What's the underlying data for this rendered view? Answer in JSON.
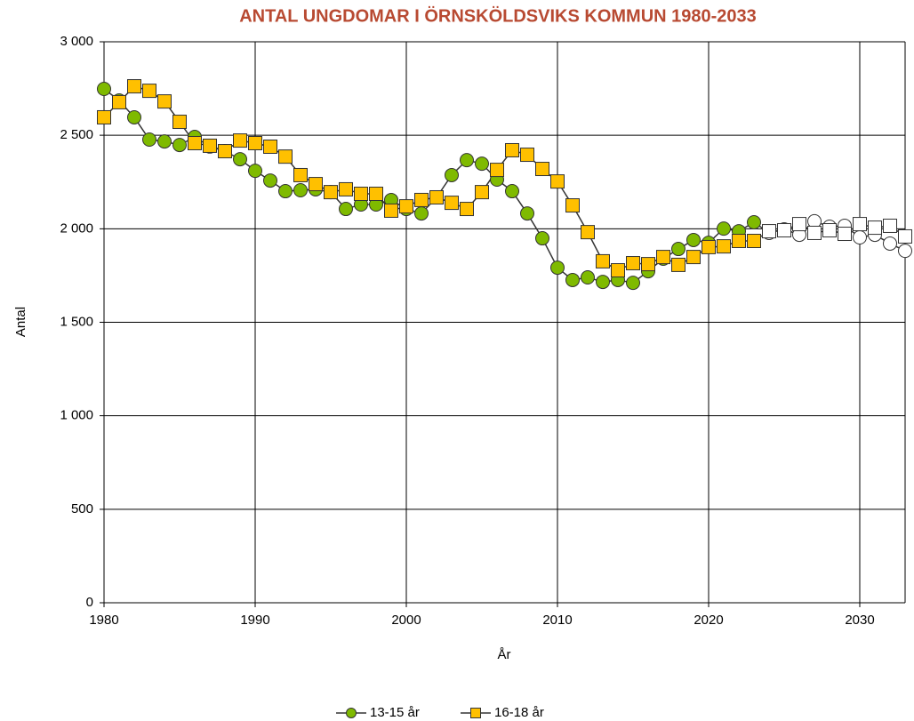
{
  "chart_data": {
    "type": "line",
    "title": "ANTAL UNGDOMAR I ÖRNSKÖLDSVIKS KOMMUN 1980-2033",
    "title_color": "#b84a32",
    "x_label": "År",
    "y_label": "Antal",
    "x": [
      1980,
      1981,
      1982,
      1983,
      1984,
      1985,
      1986,
      1987,
      1988,
      1989,
      1990,
      1991,
      1992,
      1993,
      1994,
      1995,
      1996,
      1997,
      1998,
      1999,
      2000,
      2001,
      2002,
      2003,
      2004,
      2005,
      2006,
      2007,
      2008,
      2009,
      2010,
      2011,
      2012,
      2013,
      2014,
      2015,
      2016,
      2017,
      2018,
      2019,
      2020,
      2021,
      2022,
      2023,
      2024,
      2025,
      2026,
      2027,
      2028,
      2029,
      2030,
      2031,
      2032,
      2033
    ],
    "forecast_from": 2024,
    "forecast_marker_color": "#ffffff",
    "series": [
      {
        "name": "13-15 år",
        "color": "#7fba00",
        "marker": "circle",
        "values": [
          2748,
          2686,
          2596,
          2477,
          2467,
          2448,
          2491,
          2440,
          2415,
          2372,
          2310,
          2258,
          2201,
          2206,
          2211,
          2196,
          2106,
          2130,
          2130,
          2154,
          2106,
          2082,
          2168,
          2287,
          2367,
          2348,
          2263,
          2201,
          2082,
          1949,
          1792,
          1726,
          1740,
          1716,
          1726,
          1711,
          1773,
          1840,
          1892,
          1940,
          1925,
          2001,
          1987,
          2035,
          1978,
          1997,
          1968,
          2040,
          2011,
          2016,
          1954,
          1968,
          1921,
          1882
        ]
      },
      {
        "name": "16-18 år",
        "color": "#ffc000",
        "marker": "square",
        "values": [
          2596,
          2677,
          2762,
          2738,
          2681,
          2572,
          2458,
          2444,
          2415,
          2472,
          2458,
          2439,
          2386,
          2287,
          2239,
          2196,
          2211,
          2187,
          2187,
          2097,
          2120,
          2154,
          2168,
          2139,
          2106,
          2196,
          2315,
          2420,
          2396,
          2320,
          2253,
          2125,
          1982,
          1826,
          1778,
          1816,
          1811,
          1849,
          1807,
          1849,
          1902,
          1906,
          1935,
          1935,
          1987,
          1992,
          2025,
          1978,
          1992,
          1973,
          2025,
          2006,
          2016,
          1959
        ]
      }
    ],
    "xlim": [
      1980,
      2033
    ],
    "xticks": [
      1980,
      1990,
      2000,
      2010,
      2020,
      2030
    ],
    "ylim": [
      0,
      3000
    ],
    "yticks": [
      0,
      500,
      {
        "value": 1000,
        "label": "1 000"
      },
      {
        "value": 1500,
        "label": "1 500"
      },
      {
        "value": 2000,
        "label": "2 000"
      },
      {
        "value": 2500,
        "label": "2 500"
      },
      {
        "value": 3000,
        "label": "3 000"
      }
    ],
    "grid": true,
    "legend": "bottom"
  }
}
